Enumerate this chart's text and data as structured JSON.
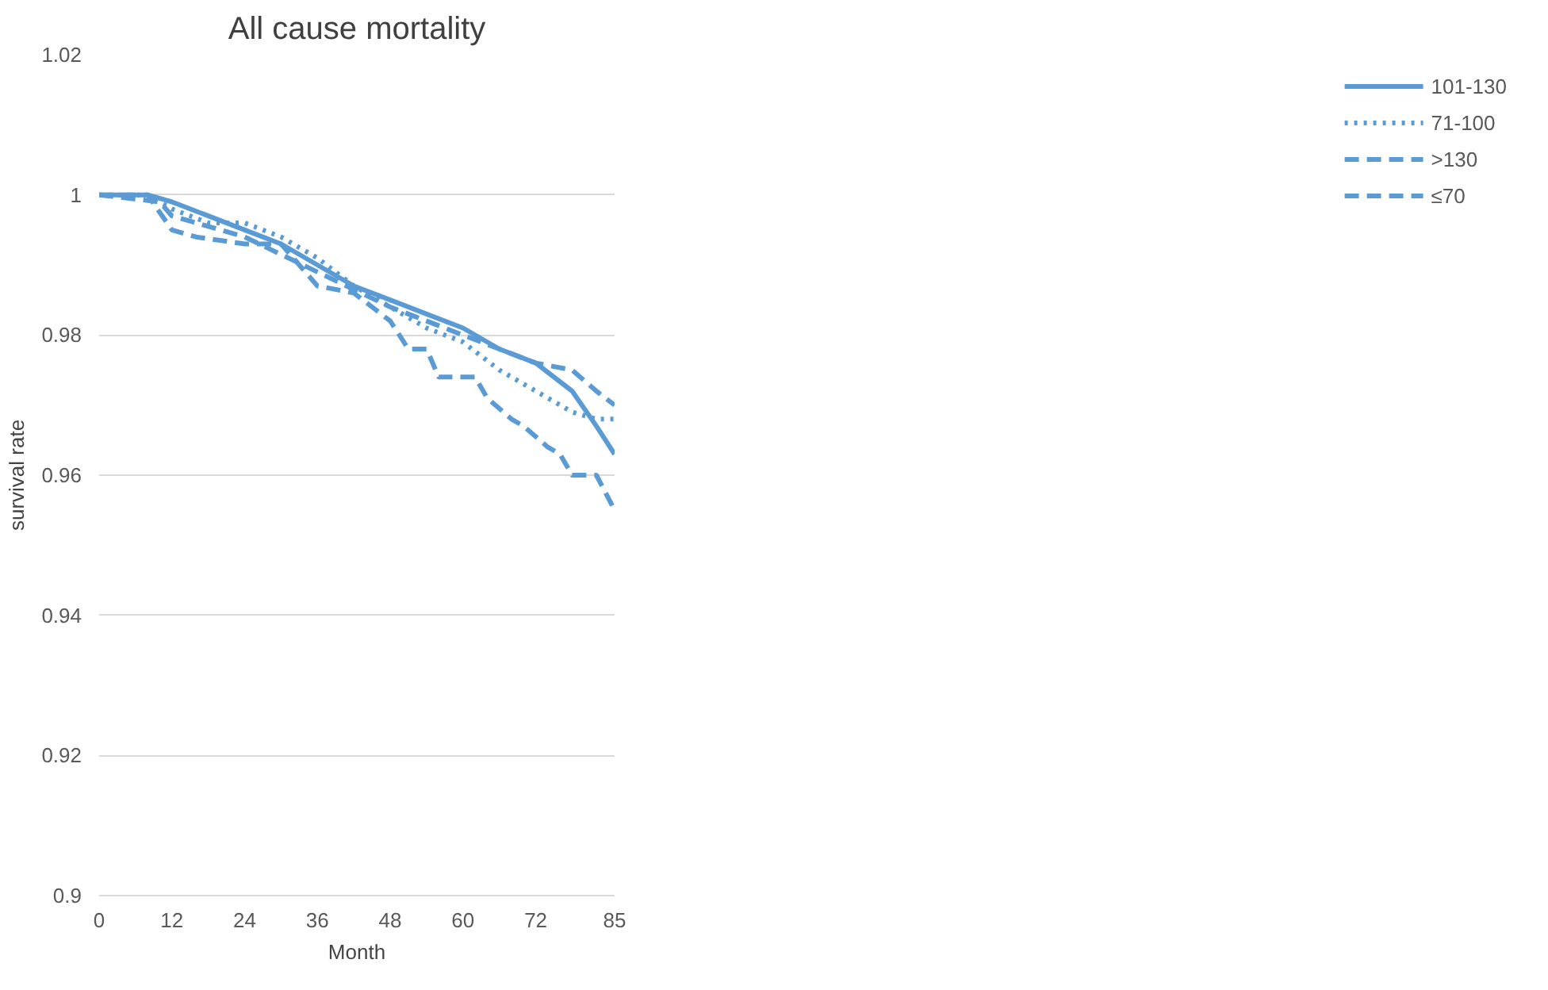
{
  "chart_data": {
    "type": "line",
    "title": "All cause mortality",
    "xlabel": "Month",
    "ylabel": "survival rate",
    "xlim": [
      0,
      85
    ],
    "xticks": [
      0,
      12,
      24,
      36,
      48,
      60,
      72,
      85
    ],
    "ylim": [
      0.9,
      1.02
    ],
    "yticks": [
      0.9,
      0.92,
      0.94,
      0.96,
      0.98,
      1,
      1.02
    ],
    "grid": "y",
    "legend": "right",
    "marker": "none",
    "series": [
      {
        "name": "101-130",
        "color": "#5b9bd5",
        "line_style": "solid",
        "x": [
          0,
          8,
          12,
          18,
          24,
          30,
          36,
          42,
          48,
          54,
          60,
          66,
          72,
          78,
          82,
          85
        ],
        "values": [
          1,
          1,
          0.999,
          0.997,
          0.995,
          0.993,
          0.99,
          0.987,
          0.985,
          0.983,
          0.981,
          0.978,
          0.976,
          0.972,
          0.967,
          0.963
        ]
      },
      {
        "name": "71-100",
        "color": "#5b9bd5",
        "line_style": "dotted",
        "x": [
          0,
          8,
          12,
          18,
          24,
          30,
          36,
          42,
          48,
          54,
          60,
          66,
          72,
          78,
          82,
          85
        ],
        "values": [
          1,
          1,
          0.998,
          0.996,
          0.996,
          0.994,
          0.991,
          0.987,
          0.984,
          0.981,
          0.979,
          0.975,
          0.972,
          0.969,
          0.968,
          0.968
        ]
      },
      {
        "name": ">130",
        "color": "#5b9bd5",
        "line_style": "dashed",
        "x": [
          0,
          10,
          12,
          24,
          36,
          48,
          60,
          66,
          72,
          78,
          82,
          85
        ],
        "values": [
          1,
          0.999,
          0.997,
          0.994,
          0.989,
          0.984,
          0.98,
          0.978,
          0.976,
          0.975,
          0.972,
          0.97
        ]
      },
      {
        "name": "≤70",
        "color": "#5b9bd5",
        "line_style": "dashed",
        "x": [
          0,
          8,
          12,
          16,
          24,
          30,
          36,
          42,
          48,
          51,
          54,
          56,
          62,
          64,
          68,
          70,
          74,
          76,
          78,
          80,
          82,
          85
        ],
        "values": [
          1,
          1,
          0.995,
          0.994,
          0.993,
          0.993,
          0.987,
          0.986,
          0.982,
          0.978,
          0.978,
          0.974,
          0.974,
          0.971,
          0.968,
          0.967,
          0.964,
          0.963,
          0.96,
          0.96,
          0.96,
          0.955
        ]
      }
    ]
  }
}
